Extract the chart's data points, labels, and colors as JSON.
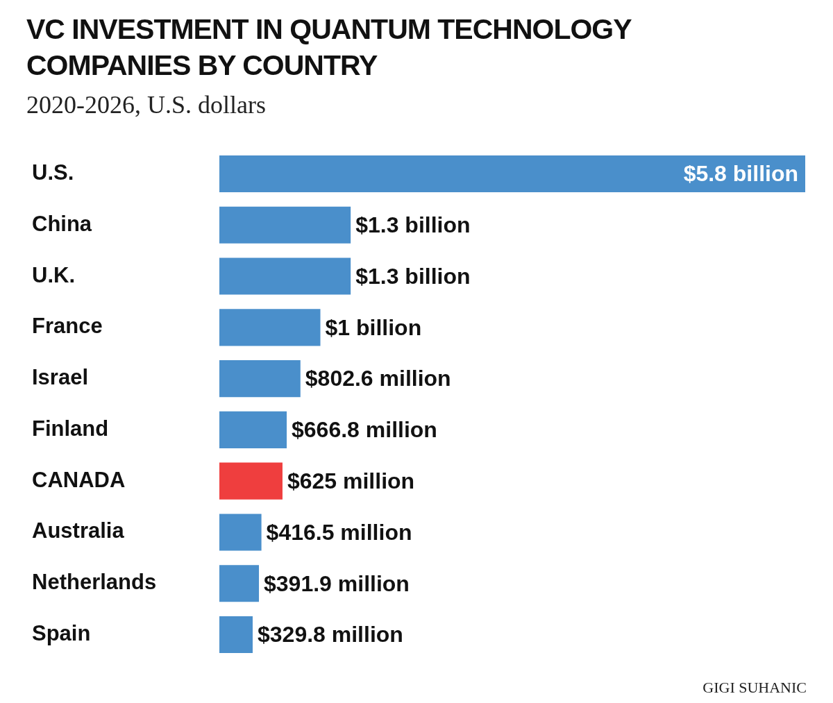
{
  "chart_data": {
    "type": "bar",
    "orientation": "horizontal",
    "title": "VC INVESTMENT IN QUANTUM TECHNOLOGY COMPANIES BY COUNTRY",
    "subtitle": "2020-2026, U.S. dollars",
    "categories": [
      "U.S.",
      "China",
      "U.K.",
      "France",
      "Israel",
      "Finland",
      "CANADA",
      "Australia",
      "Netherlands",
      "Spain"
    ],
    "values": [
      5800000000,
      1300000000,
      1300000000,
      1000000000,
      802600000,
      666800000,
      625000000,
      416500000,
      391900000,
      329800000
    ],
    "value_labels": [
      "$5.8 billion",
      "$1.3 billion",
      "$1.3 billion",
      "$1 billion",
      "$802.6 million",
      "$666.8 million",
      "$625 million",
      "$416.5 million",
      "$391.9 million",
      "$329.8 million"
    ],
    "colors": [
      "#4a8fcb",
      "#4a8fcb",
      "#4a8fcb",
      "#4a8fcb",
      "#4a8fcb",
      "#4a8fcb",
      "#ef3e3e",
      "#4a8fcb",
      "#4a8fcb",
      "#4a8fcb"
    ],
    "legend": false,
    "annotations": [
      "GIGI SUHANIC"
    ]
  }
}
